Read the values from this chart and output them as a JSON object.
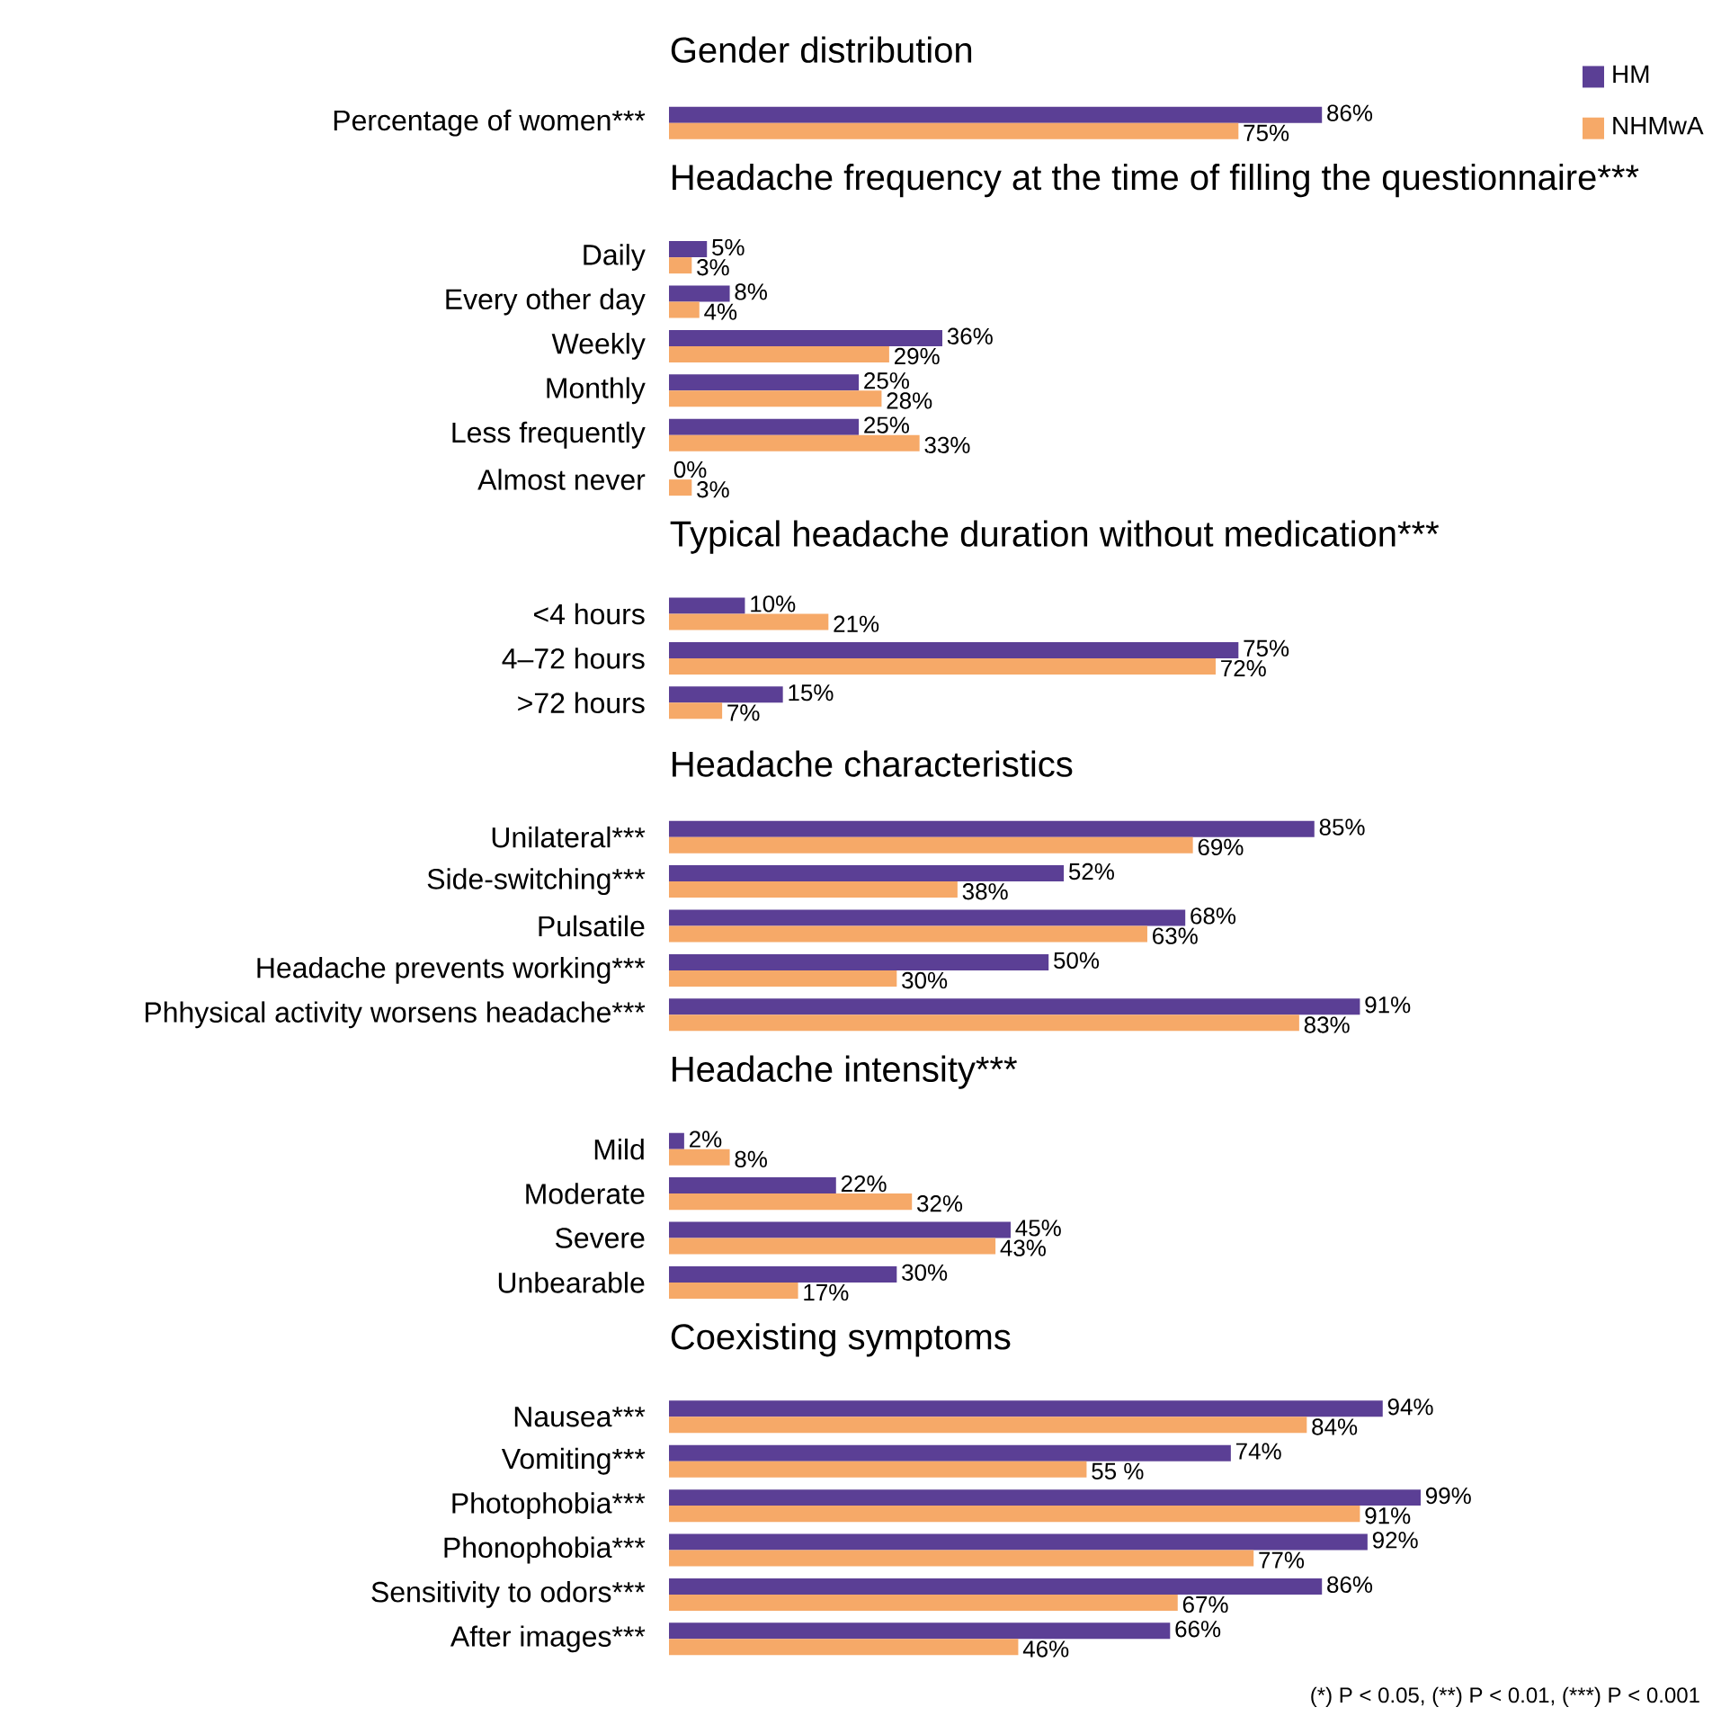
{
  "chart_data": [
    {
      "type": "bar",
      "orientation": "horizontal",
      "title": "Gender distribution",
      "categories": [
        "Percentage of women***"
      ],
      "legend": "top right",
      "tick_labels": "y",
      "series": [
        {
          "name": "HM",
          "color": "#5b3f95",
          "values": [
            86
          ],
          "value_labels": [
            "86%"
          ]
        },
        {
          "name": "NHMwA",
          "color": "#f6a968",
          "values": [
            75
          ],
          "value_labels": [
            "75%"
          ]
        }
      ]
    },
    {
      "type": "bar",
      "orientation": "horizontal",
      "title": "Headache frequency at the time of filling the questionnaire***",
      "categories": [
        "Daily",
        "Every other day",
        "Weekly",
        "Monthly",
        "Less frequently",
        "Almost never"
      ],
      "tick_labels": "y",
      "series": [
        {
          "color": "#5b3f95",
          "values": [
            5,
            8,
            36,
            25,
            25,
            0
          ],
          "value_labels": [
            "5%",
            "8%",
            "36%",
            "25%",
            "25%",
            "0%"
          ]
        },
        {
          "color": "#f6a968",
          "values": [
            3,
            4,
            29,
            28,
            33,
            3
          ],
          "value_labels": [
            "3%",
            "4%",
            "29%",
            "28%",
            "33%",
            "3%"
          ]
        }
      ]
    },
    {
      "type": "bar",
      "orientation": "horizontal",
      "title": "Typical headache duration without medication***",
      "categories": [
        "<4 hours",
        "4–72 hours",
        ">72 hours"
      ],
      "tick_labels": "y",
      "series": [
        {
          "color": "#5b3f95",
          "values": [
            10,
            75,
            15
          ],
          "value_labels": [
            "10%",
            "75%",
            "15%"
          ]
        },
        {
          "color": "#f6a968",
          "values": [
            21,
            72,
            7
          ],
          "value_labels": [
            "21%",
            "72%",
            "7%"
          ]
        }
      ]
    },
    {
      "type": "bar",
      "orientation": "horizontal",
      "title": "Headache characteristics",
      "categories": [
        "Unilateral***",
        "Side-switching***",
        "Pulsatile",
        "Headache prevents working***",
        "Phhysical activity worsens headache***"
      ],
      "tick_labels": "y",
      "series": [
        {
          "color": "#5b3f95",
          "values": [
            85,
            52,
            68,
            50,
            91
          ],
          "value_labels": [
            "85%",
            "52%",
            "68%",
            "50%",
            "91%"
          ]
        },
        {
          "color": "#f6a968",
          "values": [
            69,
            38,
            63,
            30,
            83
          ],
          "value_labels": [
            "69%",
            "38%",
            "63%",
            "30%",
            "83%"
          ]
        }
      ]
    },
    {
      "type": "bar",
      "orientation": "horizontal",
      "title": "Headache intensity***",
      "categories": [
        "Mild",
        "Moderate",
        "Severe",
        "Unbearable"
      ],
      "tick_labels": "y",
      "series": [
        {
          "color": "#5b3f95",
          "values": [
            2,
            22,
            45,
            30
          ],
          "value_labels": [
            "2%",
            "22%",
            "45%",
            "30%"
          ]
        },
        {
          "color": "#f6a968",
          "values": [
            8,
            32,
            43,
            17
          ],
          "value_labels": [
            "8%",
            "32%",
            "43%",
            "17%"
          ]
        }
      ]
    },
    {
      "type": "bar",
      "orientation": "horizontal",
      "title": "Coexisting symptoms",
      "categories": [
        "Nausea***",
        "Vomiting***",
        "Photophobia***",
        "Phonophobia***",
        "Sensitivity to odors***",
        "After images***"
      ],
      "tick_labels": "y",
      "annotations": [
        "(*) P < 0.05,",
        "(**) P < 0.01,",
        "(***) P < 0.001"
      ],
      "series": [
        {
          "color": "#5b3f95",
          "values": [
            94,
            74,
            99,
            92,
            86,
            66
          ],
          "value_labels": [
            "94%",
            "74%",
            "99%",
            "92%",
            "86%",
            "66%"
          ]
        },
        {
          "color": "#f6a968",
          "values": [
            84,
            55,
            91,
            77,
            67,
            46
          ],
          "value_labels": [
            "84%",
            "55 %",
            "91%",
            "77%",
            "67%",
            "46%"
          ]
        }
      ]
    }
  ]
}
